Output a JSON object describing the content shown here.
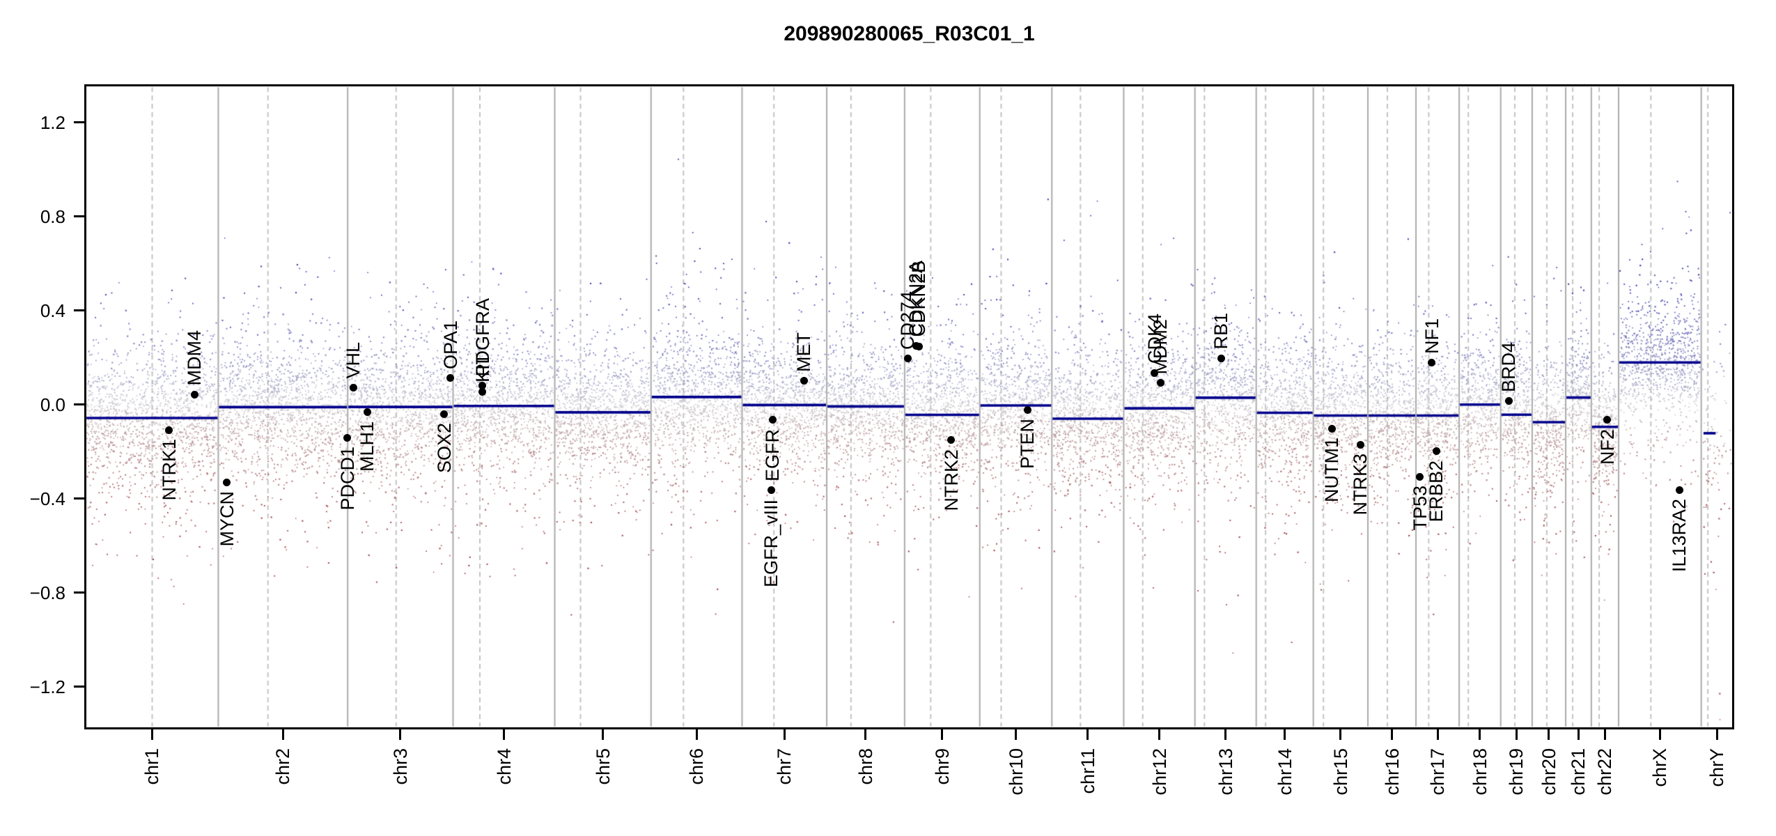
{
  "title": "209890280065_R03C01_1",
  "colors": {
    "background": "#ffffff",
    "segment_line": "#00008b",
    "chromosome_boundary": "#aaaaaa",
    "centromere_line": "#c3c3c3",
    "axis": "#000000",
    "gene_dot": "#000000",
    "point_neutral_rgb": [
      203,
      203,
      207
    ],
    "point_gain_rgb": [
      37,
      37,
      166
    ],
    "point_loss_rgb": [
      150,
      47,
      47
    ]
  },
  "chart_data": {
    "type": "scatter",
    "title": "209890280065_R03C01_1",
    "xlabel": "",
    "ylabel": "",
    "ylim": [
      -1.38,
      1.36
    ],
    "grid": "vertical chromosome separators (solid) and centromeres (dashed)",
    "legend_position": "none",
    "yticks": [
      1.2,
      0.8,
      0.4,
      0.0,
      -0.4,
      -0.8,
      -1.2
    ],
    "ytick_labels": [
      "1.2",
      "0.8",
      "0.4",
      "0.0",
      "−0.4",
      "−0.8",
      "−1.2"
    ],
    "description": "Genome-wide log R ratio scatter with per-chromosome copy-number segment means (dark blue lines) and annotated cancer genes (black dots).",
    "chromosomes": [
      {
        "name": "chr1",
        "length_mb": 249.25,
        "centromere_mb": 125.0,
        "segment": -0.057
      },
      {
        "name": "chr2",
        "length_mb": 243.2,
        "centromere_mb": 93.3,
        "segment": -0.011
      },
      {
        "name": "chr3",
        "length_mb": 198.02,
        "centromere_mb": 91.0,
        "segment": -0.01
      },
      {
        "name": "chr4",
        "length_mb": 191.15,
        "centromere_mb": 50.4,
        "segment": -0.006
      },
      {
        "name": "chr5",
        "length_mb": 180.92,
        "centromere_mb": 48.4,
        "segment": -0.033
      },
      {
        "name": "chr6",
        "length_mb": 171.12,
        "centromere_mb": 61.0,
        "segment": 0.032
      },
      {
        "name": "chr7",
        "length_mb": 159.14,
        "centromere_mb": 59.9,
        "segment": -0.002
      },
      {
        "name": "chr8",
        "length_mb": 146.36,
        "centromere_mb": 45.6,
        "segment": -0.008
      },
      {
        "name": "chr9",
        "length_mb": 141.21,
        "centromere_mb": 49.0,
        "segment": -0.044
      },
      {
        "name": "chr10",
        "length_mb": 135.53,
        "centromere_mb": 40.2,
        "segment": -0.004
      },
      {
        "name": "chr11",
        "length_mb": 135.01,
        "centromere_mb": 53.7,
        "segment": -0.06
      },
      {
        "name": "chr12",
        "length_mb": 133.85,
        "centromere_mb": 35.8,
        "segment": -0.016
      },
      {
        "name": "chr13",
        "length_mb": 115.17,
        "centromere_mb": 17.9,
        "segment": 0.029
      },
      {
        "name": "chr14",
        "length_mb": 107.35,
        "centromere_mb": 17.6,
        "segment": -0.035
      },
      {
        "name": "chr15",
        "length_mb": 102.53,
        "centromere_mb": 19.0,
        "segment": -0.047
      },
      {
        "name": "chr16",
        "length_mb": 90.35,
        "centromere_mb": 36.6,
        "segment": -0.047
      },
      {
        "name": "chr17",
        "length_mb": 81.2,
        "centromere_mb": 24.0,
        "segment": -0.047
      },
      {
        "name": "chr18",
        "length_mb": 78.08,
        "centromere_mb": 17.2,
        "segment": 0.0
      },
      {
        "name": "chr19",
        "length_mb": 59.13,
        "centromere_mb": 26.5,
        "segment": -0.043
      },
      {
        "name": "chr20",
        "length_mb": 63.03,
        "centromere_mb": 27.5,
        "segment": -0.075
      },
      {
        "name": "chr21",
        "length_mb": 48.13,
        "centromere_mb": 13.2,
        "segment": 0.03
      },
      {
        "name": "chr22",
        "length_mb": 51.3,
        "centromere_mb": 14.7,
        "segment": -0.095
      },
      {
        "name": "chrX",
        "length_mb": 155.27,
        "centromere_mb": 60.6,
        "segment": 0.179
      },
      {
        "name": "chrY",
        "length_mb": 59.37,
        "centromere_mb": 12.5,
        "segment": -0.122,
        "segment_span": [
          0.05,
          0.48
        ]
      }
    ],
    "genes": [
      {
        "name": "NTRK1",
        "chrom": "chr1",
        "mb": 156.8,
        "value": -0.108,
        "label": "below"
      },
      {
        "name": "MDM4",
        "chrom": "chr1",
        "mb": 204.5,
        "value": 0.041,
        "label": "above"
      },
      {
        "name": "MYCN",
        "chrom": "chr2",
        "mb": 16.1,
        "value": -0.33,
        "label": "below"
      },
      {
        "name": "PDCD1",
        "chrom": "chr2",
        "mb": 242.8,
        "value": -0.141,
        "label": "below"
      },
      {
        "name": "VHL",
        "chrom": "chr3",
        "mb": 10.2,
        "value": 0.071,
        "label": "above"
      },
      {
        "name": "MLH1",
        "chrom": "chr3",
        "mb": 37.0,
        "value": -0.033,
        "label": "below"
      },
      {
        "name": "SOX2",
        "chrom": "chr3",
        "mb": 181.4,
        "value": -0.04,
        "label": "below"
      },
      {
        "name": "OPA1",
        "chrom": "chr3",
        "mb": 193.3,
        "value": 0.113,
        "label": "above"
      },
      {
        "name": "PDGFRA",
        "chrom": "chr4",
        "mb": 55.1,
        "value": 0.08,
        "label": "above"
      },
      {
        "name": "KIT",
        "chrom": "chr4",
        "mb": 55.6,
        "value": 0.055,
        "label": "above"
      },
      {
        "name": "EGFR_vIII",
        "chrom": "chr7",
        "mb": 55.0,
        "value": -0.365,
        "label": "below"
      },
      {
        "name": "EGFR",
        "chrom": "chr7",
        "mb": 57.5,
        "value": -0.065,
        "label": "below"
      },
      {
        "name": "MET",
        "chrom": "chr7",
        "mb": 116.3,
        "value": 0.101,
        "label": "above"
      },
      {
        "name": "CD274",
        "chrom": "chr9",
        "mb": 5.5,
        "value": 0.195,
        "label": "above"
      },
      {
        "name": "CDKN2A",
        "chrom": "chr9",
        "mb": 21.2,
        "value": 0.25,
        "label": "above"
      },
      {
        "name": "CDKN2B",
        "chrom": "chr9",
        "mb": 27.0,
        "value": 0.248,
        "label": "above"
      },
      {
        "name": "NTRK2",
        "chrom": "chr9",
        "mb": 87.3,
        "value": -0.151,
        "label": "below"
      },
      {
        "name": "PTEN",
        "chrom": "chr10",
        "mb": 89.7,
        "value": -0.022,
        "label": "below"
      },
      {
        "name": "CDK4",
        "chrom": "chr12",
        "mb": 58.1,
        "value": 0.135,
        "label": "above"
      },
      {
        "name": "MDM2",
        "chrom": "chr12",
        "mb": 69.2,
        "value": 0.091,
        "label": "above"
      },
      {
        "name": "RB1",
        "chrom": "chr13",
        "mb": 48.9,
        "value": 0.197,
        "label": "above"
      },
      {
        "name": "NUTM1",
        "chrom": "chr15",
        "mb": 34.6,
        "value": -0.102,
        "label": "below"
      },
      {
        "name": "NTRK3",
        "chrom": "chr15",
        "mb": 88.4,
        "value": -0.171,
        "label": "below"
      },
      {
        "name": "TP53",
        "chrom": "chr17",
        "mb": 7.6,
        "value": -0.307,
        "label": "below"
      },
      {
        "name": "NF1",
        "chrom": "chr17",
        "mb": 29.5,
        "value": 0.177,
        "label": "above"
      },
      {
        "name": "ERBB2",
        "chrom": "chr17",
        "mb": 37.9,
        "value": -0.199,
        "label": "below"
      },
      {
        "name": "BRD4",
        "chrom": "chr19",
        "mb": 15.4,
        "value": 0.014,
        "label": "above"
      },
      {
        "name": "NF2",
        "chrom": "chr22",
        "mb": 30.0,
        "value": -0.065,
        "label": "below"
      },
      {
        "name": "IL13RA2",
        "chrom": "chrX",
        "mb": 114.2,
        "value": -0.363,
        "label": "below"
      }
    ],
    "scatter_style": {
      "seed": 7,
      "points_per_mb": 6.0,
      "chrY_points_per_mb": 1.4,
      "chrY_sd_multiplier": 1.7,
      "core": {
        "frac": 0.62,
        "sd": 0.115,
        "shift": 0.0
      },
      "mid": {
        "frac": 0.29,
        "sd": 0.21,
        "shift": -0.01
      },
      "tail": {
        "frac": 0.09,
        "sd": 0.3,
        "shift": -0.05
      },
      "color_saturation_value": 0.52,
      "point_alpha": 0.88,
      "clip": [
        -1.34,
        1.33
      ]
    }
  }
}
